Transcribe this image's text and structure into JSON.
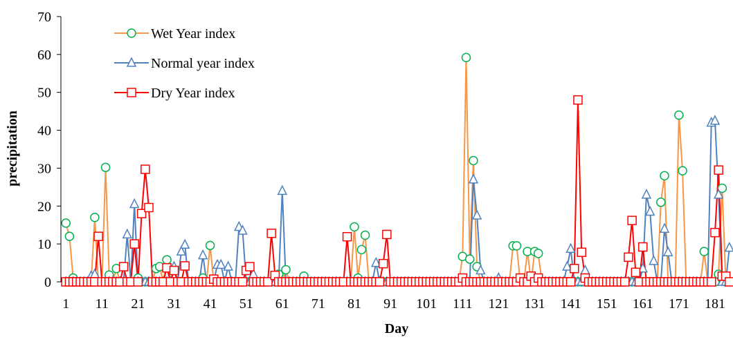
{
  "chart_data": {
    "type": "line",
    "x_label": "Day",
    "y_label": "precipitation",
    "x": [
      1,
      2,
      3,
      4,
      5,
      6,
      7,
      8,
      9,
      10,
      11,
      12,
      13,
      14,
      15,
      16,
      17,
      18,
      19,
      20,
      21,
      22,
      23,
      24,
      25,
      26,
      27,
      28,
      29,
      30,
      31,
      32,
      33,
      34,
      35,
      36,
      37,
      38,
      39,
      40,
      41,
      42,
      43,
      44,
      45,
      46,
      47,
      48,
      49,
      50,
      51,
      52,
      53,
      54,
      55,
      56,
      57,
      58,
      59,
      60,
      61,
      62,
      63,
      64,
      65,
      66,
      67,
      68,
      69,
      70,
      71,
      72,
      73,
      74,
      75,
      76,
      77,
      78,
      79,
      80,
      81,
      82,
      83,
      84,
      85,
      86,
      87,
      88,
      89,
      90,
      91,
      92,
      93,
      94,
      95,
      96,
      97,
      98,
      99,
      100,
      101,
      102,
      103,
      104,
      105,
      106,
      107,
      108,
      109,
      110,
      111,
      112,
      113,
      114,
      115,
      116,
      117,
      118,
      119,
      120,
      121,
      122,
      123,
      124,
      125,
      126,
      127,
      128,
      129,
      130,
      131,
      132,
      133,
      134,
      135,
      136,
      137,
      138,
      139,
      140,
      141,
      142,
      143,
      144,
      145,
      146,
      147,
      148,
      149,
      150,
      151,
      152,
      153,
      154,
      155,
      156,
      157,
      158,
      159,
      160,
      161,
      162,
      163,
      164,
      165,
      166,
      167,
      168,
      169,
      170,
      171,
      172,
      173,
      174,
      175,
      176,
      177,
      178,
      179,
      180,
      181,
      182,
      183,
      184,
      185
    ],
    "xlim": [
      0,
      186
    ],
    "xticks": [
      1,
      11,
      21,
      31,
      41,
      51,
      61,
      71,
      81,
      91,
      101,
      111,
      121,
      131,
      141,
      151,
      161,
      171,
      181
    ],
    "ylim": [
      0,
      70
    ],
    "yticks": [
      0,
      10,
      20,
      30,
      40,
      50,
      60,
      70
    ],
    "legend": "upper-left",
    "series": [
      {
        "name": "Wet Year index",
        "color": "#f79646",
        "marker_color": "#00b050",
        "marker": "circle",
        "values": [
          15.5,
          12,
          1,
          0,
          0,
          0,
          0,
          0,
          17,
          0,
          0,
          30.2,
          1.8,
          0,
          3.5,
          0,
          0,
          0,
          0,
          0,
          1,
          0,
          0,
          0,
          0,
          3.5,
          4,
          0,
          5.8,
          0,
          0,
          0,
          0,
          0,
          0,
          0,
          0,
          0,
          1,
          0,
          9.6,
          0,
          0,
          0,
          0,
          0,
          0,
          0,
          0,
          0,
          0,
          0,
          0,
          0,
          0,
          0,
          0,
          0,
          0,
          2,
          0,
          3.2,
          0,
          0,
          0,
          0,
          1.5,
          0,
          0,
          0,
          0,
          0,
          0,
          0,
          0,
          0,
          0,
          0,
          0,
          0,
          14.5,
          1,
          8.5,
          12.3,
          0,
          0,
          0,
          0,
          0,
          0,
          0,
          0,
          0,
          0,
          0,
          0,
          0,
          0,
          0,
          0,
          0,
          0,
          0,
          0,
          0,
          0,
          0,
          0,
          0,
          0,
          6.7,
          59.2,
          6,
          32,
          4,
          0,
          0,
          0,
          0,
          0,
          0,
          0,
          0,
          0,
          9.5,
          9.5,
          0,
          0,
          8,
          0,
          8,
          7.5,
          0,
          0,
          0,
          0,
          0,
          0,
          0,
          0,
          0,
          0,
          0,
          0,
          0,
          0,
          0,
          0,
          0,
          0,
          0,
          0,
          0,
          0,
          0,
          0,
          0,
          0,
          0,
          0,
          0,
          0,
          0,
          0,
          0,
          21,
          28,
          0,
          0,
          0,
          44,
          29.3,
          0,
          0,
          0,
          0,
          0,
          8,
          0,
          0,
          0,
          2,
          24.7,
          0,
          0
        ]
      },
      {
        "name": "Normal year index",
        "color": "#4f81bd",
        "marker_color": "#4f81bd",
        "marker": "triangle",
        "values": [
          0,
          0,
          0,
          0,
          0,
          0,
          0,
          1.5,
          2,
          0,
          0,
          0,
          0,
          0,
          0,
          0,
          0,
          12.5,
          0,
          20.5,
          0,
          0,
          0,
          0,
          0,
          0,
          0,
          0,
          0,
          0,
          4,
          0,
          8,
          9.8,
          0,
          0,
          0,
          0,
          7,
          0,
          0,
          0,
          4.5,
          4.5,
          0,
          4,
          0,
          0,
          14.5,
          13.5,
          0,
          0,
          2,
          0,
          0,
          0,
          0,
          0,
          0,
          0,
          24,
          0,
          0,
          0,
          0,
          0,
          0,
          0,
          0,
          0,
          0,
          0,
          0,
          0,
          0,
          0,
          0,
          0,
          0,
          0,
          0,
          0,
          0,
          0,
          0,
          0,
          5,
          0,
          0,
          0,
          0,
          0,
          0,
          0,
          0,
          0,
          0,
          0,
          0,
          0,
          0,
          0,
          0,
          0,
          0,
          0,
          0,
          0,
          0,
          0,
          0,
          0,
          0,
          27,
          17.5,
          3,
          0,
          0,
          0,
          0,
          1,
          0,
          0,
          0,
          0,
          0,
          0,
          0,
          0,
          0,
          0,
          0,
          0,
          0,
          0,
          0,
          0,
          0,
          0,
          4,
          8.7,
          0,
          0,
          0,
          3,
          0,
          0,
          0,
          0,
          0,
          0,
          0,
          0,
          0,
          0,
          0,
          0,
          0,
          0,
          0,
          3.5,
          23,
          18.5,
          5.5,
          0,
          0,
          14,
          7.8,
          0,
          0,
          0,
          0,
          0,
          0,
          0,
          0,
          0,
          0,
          0,
          42,
          42.5,
          23,
          0,
          0,
          9
        ]
      },
      {
        "name": "Dry Year index",
        "color": "#ff0000",
        "marker_color": "#ff0000",
        "marker": "square",
        "values": [
          0,
          0,
          0,
          0,
          0,
          0,
          0,
          0,
          0,
          12,
          0,
          0,
          0,
          0,
          0,
          0,
          4,
          0,
          0,
          10,
          0,
          18,
          29.7,
          19.6,
          0,
          0,
          0,
          0,
          3.7,
          0,
          3,
          0,
          0,
          4.2,
          0,
          0,
          0,
          0,
          0,
          0,
          0,
          0.7,
          0,
          0,
          0,
          0,
          0,
          0,
          0,
          0,
          3,
          4,
          0,
          0,
          0,
          0,
          0,
          12.8,
          1.7,
          0,
          0,
          0,
          0,
          0,
          0,
          0,
          0,
          0,
          0,
          0,
          0,
          0,
          0,
          0,
          0,
          0,
          0,
          0,
          11.9,
          0,
          0,
          0,
          0,
          0,
          0,
          0,
          0,
          0,
          4.8,
          12.5,
          0,
          0,
          0,
          0,
          0,
          0,
          0,
          0,
          0,
          0,
          0,
          0,
          0,
          0,
          0,
          0,
          0,
          0,
          0,
          0,
          1,
          0,
          0,
          0,
          0,
          0,
          0,
          0,
          0,
          0,
          0,
          0,
          0,
          0,
          0,
          0,
          1,
          0,
          0,
          1.5,
          0,
          1,
          0,
          0,
          0,
          0,
          0,
          0,
          0,
          0,
          0,
          3.5,
          48,
          7.8,
          1,
          0,
          0,
          0,
          0,
          0,
          0,
          0,
          0,
          0,
          0,
          0,
          6.5,
          16.2,
          2.5,
          0,
          9.2,
          0,
          0,
          0,
          0,
          0,
          0,
          0,
          0,
          0,
          0,
          0,
          0,
          0,
          0,
          0,
          0,
          0,
          0,
          0,
          13,
          29.5,
          1.5,
          1.5,
          0
        ]
      }
    ]
  }
}
